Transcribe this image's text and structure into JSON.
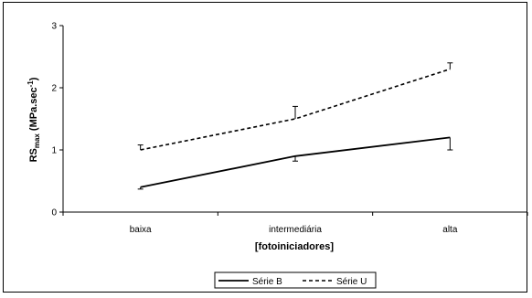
{
  "chart_data": {
    "type": "line",
    "categories": [
      "baixa",
      "intermediária",
      "alta"
    ],
    "xlabel": "[fotoiniciadores]",
    "ylabel_main": "RS",
    "ylabel_sub": "max",
    "ylabel_unit": " (MPa.sec",
    "ylabel_sup": "-1",
    "ylabel_close": ")",
    "ylim": [
      0,
      3
    ],
    "yticks": [
      0,
      1,
      2,
      3
    ],
    "grid": false,
    "legend_position": "bottom",
    "series": [
      {
        "name": "Série B",
        "values": [
          0.4,
          0.9,
          1.2
        ],
        "errors": [
          0.03,
          0.08,
          0.2
        ],
        "error_direction": "down",
        "style": "solid",
        "color": "#000000"
      },
      {
        "name": "Série U",
        "values": [
          1.0,
          1.5,
          2.3
        ],
        "errors": [
          0.08,
          0.2,
          0.1
        ],
        "error_direction": "up",
        "style": "dashed",
        "color": "#000000"
      }
    ]
  }
}
